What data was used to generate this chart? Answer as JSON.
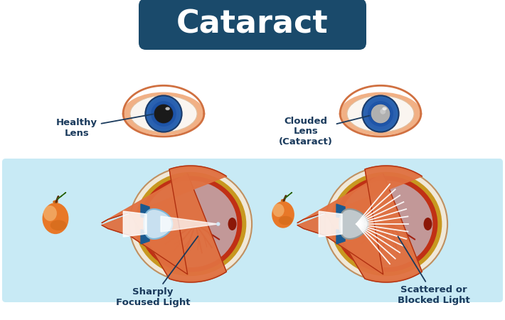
{
  "title": "Cataract",
  "title_bg": "#1a4a6b",
  "title_color": "#ffffff",
  "title_fontsize": 32,
  "bg_color": "#ffffff",
  "panel_bg": "#c8eaf5",
  "label_healthy": "Healthy\nLens",
  "label_clouded": "Clouded\nLens\n(Cataract)",
  "label_sharp": "Sharply\nFocused Light",
  "label_scattered": "Scattered or\nBlocked Light",
  "label_color": "#1a3a5c",
  "eye_iris_color": "#2a65b0",
  "eye_iris_inner": "#1a50a0",
  "eye_pupil_healthy": "#1a1a1a",
  "eye_pupil_cataract": "#b0b0b0",
  "eye_lid_color": "#f0a878",
  "eye_lid_edge": "#d07040",
  "apple_body": "#e87828",
  "apple_body2": "#d06818",
  "apple_highlight": "#f8c888",
  "apple_leaf": "#4a9020",
  "apple_stem": "#5a3010",
  "cross_outer": "#e07040",
  "cross_choroid": "#d4a030",
  "cross_retina": "#c03818",
  "cross_vitreous": "#c8e4f0",
  "cross_nerve": "#a02808",
  "lens_healthy": "#c8e0f0",
  "lens_cataract": "#c0c8cc",
  "light_color": "#ffffff",
  "vessel_color": "#4a90c0"
}
